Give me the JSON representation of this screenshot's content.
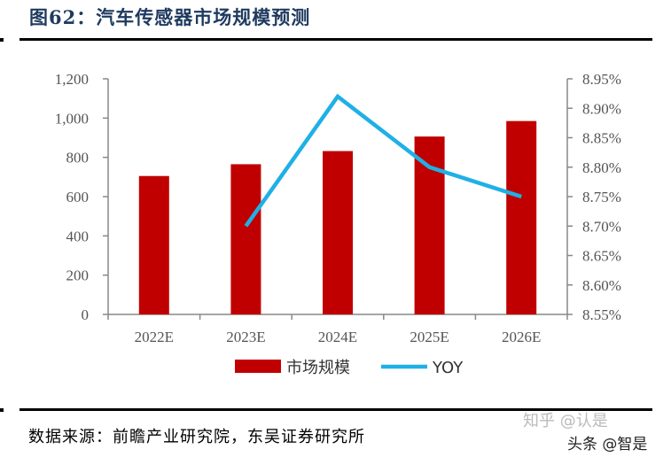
{
  "title": "图62：汽车传感器市场规模预测",
  "source": "数据来源：前瞻产业研究院，东吴证券研究所",
  "watermark": "知乎 @认是",
  "watermark2": "头条 @智是",
  "chart_data": {
    "type": "bar+line",
    "categories": [
      "2022E",
      "2023E",
      "2024E",
      "2025E",
      "2026E"
    ],
    "series": [
      {
        "name": "市场规模",
        "type": "bar",
        "axis": "left",
        "color": "#c00000",
        "values": [
          705,
          765,
          832,
          906,
          985
        ]
      },
      {
        "name": "YOY",
        "type": "line",
        "axis": "right",
        "color": "#1fb0e6",
        "values": [
          null,
          8.7,
          8.92,
          8.8,
          8.75
        ]
      }
    ],
    "left_axis": {
      "ylim": [
        0,
        1200
      ],
      "ticks": [
        "0",
        "200",
        "400",
        "600",
        "800",
        "1,000",
        "1,200"
      ]
    },
    "right_axis": {
      "ylim": [
        8.55,
        8.95
      ],
      "ticks": [
        "8.55%",
        "8.60%",
        "8.65%",
        "8.70%",
        "8.75%",
        "8.80%",
        "8.85%",
        "8.90%",
        "8.95%"
      ]
    },
    "legend": "bottom",
    "grid": false
  }
}
